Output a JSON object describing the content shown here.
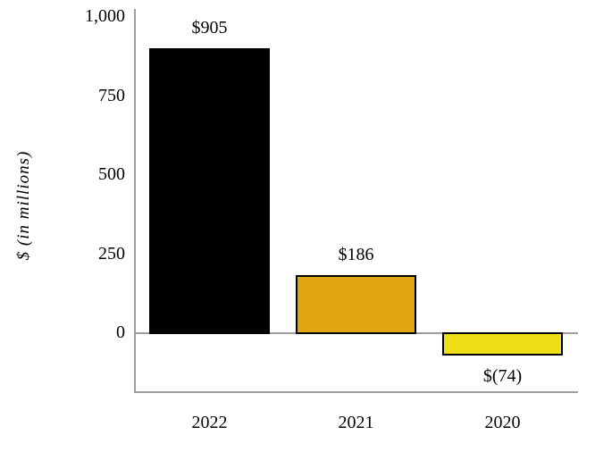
{
  "chart_data": {
    "type": "bar",
    "categories": [
      "2022",
      "2021",
      "2020"
    ],
    "values": [
      905,
      186,
      -74
    ],
    "value_labels": [
      "$905",
      "$186",
      "$(74)"
    ],
    "bar_colors": [
      "#000000",
      "#E1A713",
      "#EFDF16"
    ],
    "bar_border_color": "#000000",
    "title": "",
    "xlabel": "",
    "ylabel": "$ (in millions)",
    "ylim": [
      -190,
      1025
    ],
    "yticks": [
      0,
      250,
      500,
      750,
      1000
    ],
    "ytick_labels": [
      "0",
      "250",
      "500",
      "750",
      "1,000"
    ],
    "grid": false,
    "legend": false,
    "axis_line_color": "#9e9e9e",
    "background_color": "#ffffff"
  }
}
